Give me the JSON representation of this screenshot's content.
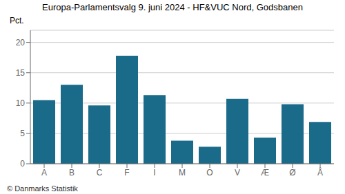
{
  "chart_data": {
    "type": "bar",
    "title": "Europa-Parlamentsvalg 9. juni 2024 - HF&VUC Nord, Godsbanen",
    "ylabel": "Pct.",
    "categories": [
      "A",
      "B",
      "C",
      "F",
      "I",
      "M",
      "O",
      "V",
      "Æ",
      "Ø",
      "Å"
    ],
    "values": [
      10.5,
      13.0,
      9.6,
      17.8,
      11.3,
      3.8,
      2.8,
      10.7,
      4.3,
      9.8,
      6.9
    ],
    "color": "#1a6b8a",
    "ylim": [
      0,
      22
    ],
    "yticks": [
      0,
      5,
      10,
      15,
      20
    ],
    "grid": true,
    "annotations": [
      "© Danmarks Statistik"
    ]
  }
}
